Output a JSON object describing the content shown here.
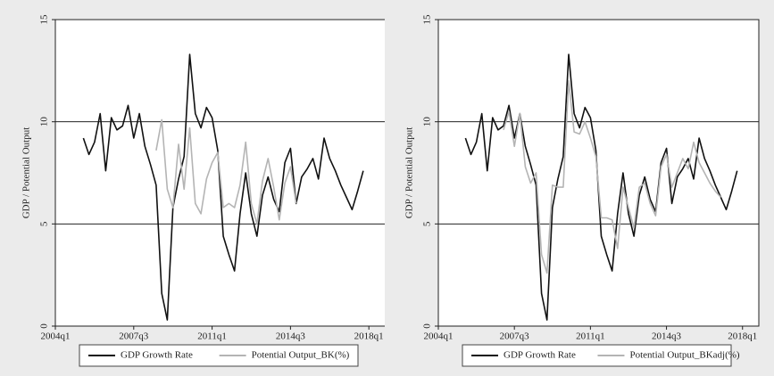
{
  "chart_data": [
    {
      "type": "line",
      "y_label": "GDP / Potential Output",
      "categories": [
        "2004q1",
        null,
        null,
        null,
        null,
        null,
        null,
        null,
        null,
        null,
        null,
        null,
        null,
        null,
        "2007q3",
        null,
        null,
        null,
        null,
        null,
        null,
        null,
        null,
        null,
        null,
        null,
        null,
        null,
        "2011q1",
        null,
        null,
        null,
        null,
        null,
        null,
        null,
        null,
        null,
        null,
        null,
        null,
        null,
        "2014q3",
        null,
        null,
        null,
        null,
        null,
        null,
        null,
        null,
        null,
        null,
        null,
        null,
        null,
        "2018q1",
        null,
        null,
        null
      ],
      "series": [
        {
          "name": "GDP Growth Rate",
          "color": "#111111",
          "values": [
            null,
            null,
            null,
            null,
            null,
            9.2,
            8.4,
            9.0,
            10.4,
            7.6,
            10.2,
            9.6,
            9.8,
            10.8,
            9.2,
            10.4,
            8.8,
            7.9,
            6.9,
            1.6,
            0.3,
            5.8,
            7.2,
            8.3,
            13.3,
            10.4,
            9.7,
            10.7,
            10.2,
            8.6,
            4.4,
            3.5,
            2.7,
            5.5,
            7.5,
            5.5,
            4.4,
            6.4,
            7.3,
            6.2,
            5.6,
            8.0,
            8.7,
            6.0,
            7.3,
            7.7,
            8.2,
            7.2,
            9.2,
            8.2,
            7.6,
            6.9,
            6.3,
            5.7,
            6.6,
            7.6,
            null,
            null,
            null,
            null
          ]
        },
        {
          "name": "Potential Output_BK(%)",
          "color": "#b4b4b4",
          "values": [
            null,
            null,
            null,
            null,
            null,
            null,
            null,
            null,
            null,
            null,
            null,
            null,
            null,
            null,
            null,
            null,
            null,
            null,
            8.6,
            10.1,
            6.7,
            5.8,
            8.9,
            6.7,
            9.7,
            6.0,
            5.5,
            7.2,
            8.0,
            8.5,
            5.8,
            6.0,
            5.8,
            6.9,
            9.0,
            6.0,
            5.0,
            7.1,
            8.2,
            6.8,
            5.2,
            7.0,
            7.8,
            6.0,
            null,
            null,
            null,
            null,
            null,
            null,
            null,
            null,
            null,
            null,
            null,
            null,
            null,
            null,
            null,
            null
          ]
        }
      ],
      "ylim": [
        0,
        15
      ],
      "yticks": [
        0,
        5,
        10,
        15
      ],
      "grid": true,
      "legend": "bottom"
    },
    {
      "type": "line",
      "y_label": "GDP / Potential Output",
      "categories": [
        "2004q1",
        null,
        null,
        null,
        null,
        null,
        null,
        null,
        null,
        null,
        null,
        null,
        null,
        null,
        "2007q3",
        null,
        null,
        null,
        null,
        null,
        null,
        null,
        null,
        null,
        null,
        null,
        null,
        null,
        "2011q1",
        null,
        null,
        null,
        null,
        null,
        null,
        null,
        null,
        null,
        null,
        null,
        null,
        null,
        "2014q3",
        null,
        null,
        null,
        null,
        null,
        null,
        null,
        null,
        null,
        null,
        null,
        null,
        null,
        "2018q1",
        null,
        null,
        null
      ],
      "series": [
        {
          "name": "GDP Growth Rate",
          "color": "#111111",
          "values": [
            null,
            null,
            null,
            null,
            null,
            9.2,
            8.4,
            9.0,
            10.4,
            7.6,
            10.2,
            9.6,
            9.8,
            10.8,
            9.2,
            10.4,
            8.8,
            7.9,
            6.9,
            1.6,
            0.3,
            5.8,
            7.2,
            8.3,
            13.3,
            10.4,
            9.7,
            10.7,
            10.2,
            8.6,
            4.4,
            3.5,
            2.7,
            5.5,
            7.5,
            5.5,
            4.4,
            6.4,
            7.3,
            6.2,
            5.6,
            8.0,
            8.7,
            6.0,
            7.3,
            7.7,
            8.2,
            7.2,
            9.2,
            8.2,
            7.6,
            6.9,
            6.3,
            5.7,
            6.6,
            7.6,
            null,
            null,
            null,
            null
          ]
        },
        {
          "name": "Potential Output_BKadj(%)",
          "color": "#b4b4b4",
          "values": [
            null,
            null,
            null,
            null,
            null,
            null,
            null,
            null,
            null,
            null,
            null,
            null,
            9.6,
            10.5,
            8.8,
            10.4,
            7.8,
            7.0,
            7.5,
            3.5,
            2.6,
            6.9,
            6.8,
            6.8,
            12.0,
            9.5,
            9.4,
            10.0,
            9.2,
            8.3,
            5.3,
            5.3,
            5.2,
            3.8,
            6.8,
            5.8,
            4.8,
            6.8,
            7.0,
            6.0,
            5.4,
            7.8,
            8.4,
            6.8,
            7.5,
            8.2,
            7.7,
            9.0,
            8.0,
            7.5,
            7.0,
            6.6,
            6.3,
            null,
            null,
            null,
            null,
            null,
            null,
            null
          ]
        }
      ],
      "ylim": [
        0,
        15
      ],
      "yticks": [
        0,
        5,
        10,
        15
      ],
      "grid": true,
      "legend": "bottom"
    }
  ]
}
